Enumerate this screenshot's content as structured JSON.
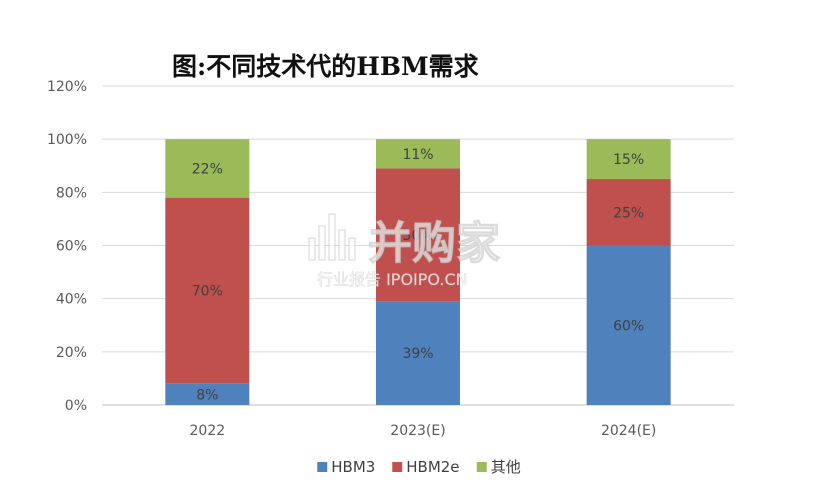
{
  "chart_data": {
    "type": "bar",
    "stacked": true,
    "title": "图:不同技术代的HBM需求",
    "categories": [
      "2022",
      "2023(E)",
      "2024(E)"
    ],
    "ylim": [
      0,
      120
    ],
    "yticks": [
      "0%",
      "20%",
      "40%",
      "60%",
      "80%",
      "100%",
      "120%"
    ],
    "grid": true,
    "legend_position": "bottom",
    "series": [
      {
        "name": "HBM3",
        "color": "#4f81bd",
        "values": [
          8,
          39,
          60
        ],
        "labels": [
          "8%",
          "39%",
          "60%"
        ]
      },
      {
        "name": "HBM2e",
        "color": "#c0504d",
        "values": [
          70,
          50,
          25
        ],
        "labels": [
          "70%",
          "50%",
          "25%"
        ]
      },
      {
        "name": "其他",
        "color": "#9bbb59",
        "values": [
          22,
          11,
          15
        ],
        "labels": [
          "22%",
          "11%",
          "15%"
        ]
      }
    ]
  },
  "watermark": {
    "brand": "并购家",
    "subtitle": "行业报告 IPOIPO.CN"
  }
}
